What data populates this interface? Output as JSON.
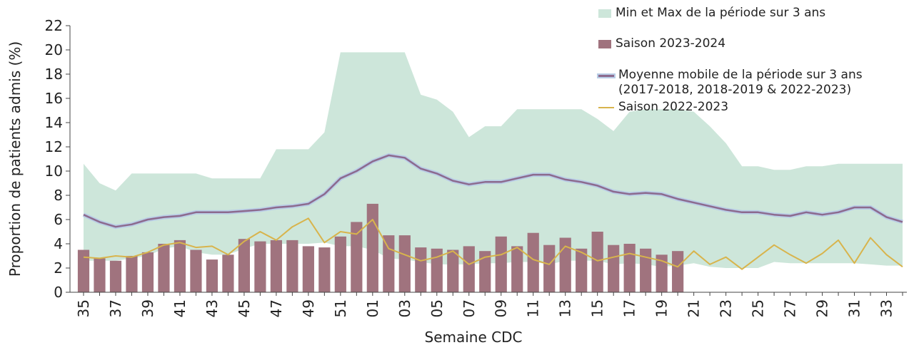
{
  "chart_data": {
    "type": "combo",
    "y_label": "Proportion de patients admis (%)",
    "x_label": "Semaine CDC",
    "categories": [
      "35",
      null,
      "37",
      null,
      "39",
      null,
      "41",
      null,
      "43",
      null,
      "45",
      null,
      "47",
      null,
      "49",
      null,
      "51",
      null,
      "01",
      null,
      "03",
      null,
      "05",
      null,
      "07",
      null,
      "09",
      null,
      "11",
      null,
      "13",
      null,
      "15",
      null,
      "17",
      null,
      "19",
      null,
      "21",
      null,
      "23",
      null,
      "25",
      null,
      "27",
      null,
      "29",
      null,
      "31",
      null,
      "33",
      null
    ],
    "ylim": [
      0,
      22
    ],
    "yticks": [
      0,
      2,
      4,
      6,
      8,
      10,
      12,
      14,
      16,
      18,
      20,
      22
    ],
    "series": [
      {
        "name": "Min et Max de la période sur 3 ans",
        "type": "band",
        "color": "#cde6da",
        "upper": [
          10.6,
          9.0,
          8.4,
          9.8,
          9.8,
          9.8,
          9.8,
          9.8,
          9.4,
          9.4,
          9.4,
          9.4,
          11.8,
          11.8,
          11.8,
          13.2,
          19.8,
          19.8,
          19.8,
          19.8,
          19.8,
          16.3,
          15.9,
          14.9,
          12.8,
          13.7,
          13.7,
          15.1,
          15.1,
          15.1,
          15.1,
          15.1,
          14.3,
          13.3,
          14.9,
          15.1,
          15.1,
          15.1,
          14.9,
          13.7,
          12.3,
          10.4,
          10.4,
          10.1,
          10.1,
          10.4,
          10.4,
          10.6,
          10.6,
          10.6,
          10.6,
          10.6
        ],
        "lower": [
          2.6,
          2.6,
          2.6,
          2.8,
          3.0,
          3.6,
          3.8,
          3.3,
          3.1,
          3.1,
          3.6,
          4.0,
          4.0,
          4.0,
          4.0,
          4.1,
          3.8,
          3.8,
          3.5,
          2.8,
          2.7,
          2.5,
          2.3,
          2.3,
          2.3,
          2.4,
          2.4,
          2.5,
          2.5,
          2.3,
          2.6,
          2.6,
          2.6,
          2.3,
          2.4,
          2.3,
          2.1,
          2.2,
          2.4,
          2.1,
          2.0,
          2.0,
          2.0,
          2.5,
          2.4,
          2.4,
          2.4,
          2.4,
          2.4,
          2.3,
          2.2,
          2.2
        ]
      },
      {
        "name": "Saison 2023-2024",
        "type": "bar",
        "color": "#a0737e",
        "values": [
          3.5,
          2.8,
          2.6,
          3.0,
          3.3,
          4.0,
          4.3,
          3.5,
          2.7,
          3.1,
          4.4,
          4.2,
          4.3,
          4.3,
          3.8,
          3.7,
          4.6,
          5.8,
          7.3,
          4.7,
          4.7,
          3.7,
          3.6,
          3.5,
          3.8,
          3.4,
          4.6,
          3.8,
          4.9,
          3.9,
          4.5,
          3.6,
          5.0,
          3.9,
          4.0,
          3.6,
          3.1,
          3.4,
          null,
          null,
          null,
          null,
          null,
          null,
          null,
          null,
          null,
          null,
          null,
          null,
          null,
          null
        ]
      },
      {
        "name": "Moyenne mobile de la période sur 3 ans (2017-2018, 2018-2019 & 2022-2023)",
        "type": "line",
        "color": "#8c6a8e",
        "halo": "#b9cde6",
        "values": [
          6.4,
          5.8,
          5.4,
          5.6,
          6.0,
          6.2,
          6.3,
          6.6,
          6.6,
          6.6,
          6.7,
          6.8,
          7.0,
          7.1,
          7.3,
          8.1,
          9.4,
          10.0,
          10.8,
          11.3,
          11.1,
          10.2,
          9.8,
          9.2,
          8.9,
          9.1,
          9.1,
          9.4,
          9.7,
          9.7,
          9.3,
          9.1,
          8.8,
          8.3,
          8.1,
          8.2,
          8.1,
          7.7,
          7.4,
          7.1,
          6.8,
          6.6,
          6.6,
          6.4,
          6.3,
          6.6,
          6.4,
          6.6,
          7.0,
          7.0,
          6.2,
          5.8
        ]
      },
      {
        "name": "Saison 2022-2023",
        "type": "line",
        "color": "#d8b44c",
        "values": [
          2.9,
          2.8,
          3.0,
          2.9,
          3.3,
          3.9,
          4.1,
          3.7,
          3.8,
          3.1,
          4.2,
          5.0,
          4.3,
          5.4,
          6.1,
          4.1,
          5.0,
          4.8,
          6.0,
          3.6,
          3.1,
          2.6,
          2.9,
          3.4,
          2.3,
          2.9,
          3.1,
          3.7,
          2.7,
          2.3,
          3.8,
          3.3,
          2.6,
          2.9,
          3.2,
          2.9,
          2.6,
          2.1,
          3.4,
          2.3,
          2.9,
          1.9,
          2.9,
          3.9,
          3.1,
          2.4,
          3.2,
          4.3,
          2.4,
          4.5,
          3.1,
          2.1
        ]
      }
    ]
  }
}
